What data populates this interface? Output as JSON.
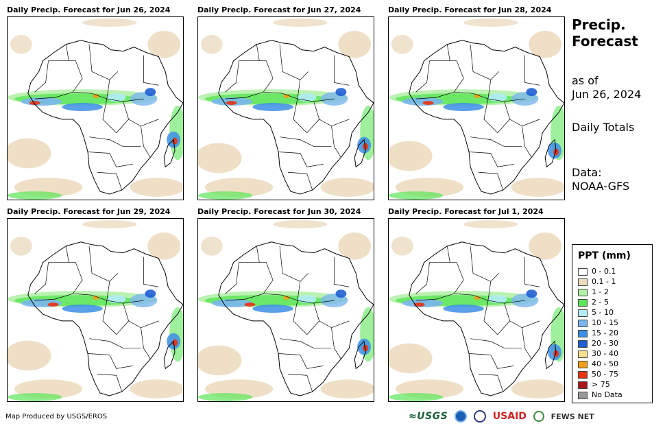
{
  "panels": [
    {
      "title": "Daily Precip. Forecast for Jun 26, 2024"
    },
    {
      "title": "Daily Precip. Forecast for Jun 27, 2024"
    },
    {
      "title": "Daily Precip. Forecast for Jun 28, 2024"
    },
    {
      "title": "Daily Precip. Forecast for Jun 29, 2024"
    },
    {
      "title": "Daily Precip. Forecast for Jun 30, 2024"
    },
    {
      "title": "Daily Precip. Forecast for Jul 1, 2024"
    }
  ],
  "side": {
    "title_line1": "Precip.",
    "title_line2": "Forecast",
    "asof_line1": "as of",
    "asof_line2": "Jun 26, 2024",
    "totals": "Daily Totals",
    "data_line1": "Data:",
    "data_line2": "NOAA-GFS"
  },
  "legend": {
    "title": "PPT (mm)",
    "items": [
      {
        "label": "0 - 0.1",
        "color": "#ffffff"
      },
      {
        "label": "0.1 - 1",
        "color": "#ecdcc0"
      },
      {
        "label": "1 - 2",
        "color": "#b4f0a8"
      },
      {
        "label": "2 - 5",
        "color": "#5ee65a"
      },
      {
        "label": "5 - 10",
        "color": "#b4ecf8"
      },
      {
        "label": "10 - 15",
        "color": "#7ab6ee"
      },
      {
        "label": "15 - 20",
        "color": "#3c8ee6"
      },
      {
        "label": "20 - 30",
        "color": "#1e5ed2"
      },
      {
        "label": "30 - 40",
        "color": "#f8e08c"
      },
      {
        "label": "40 - 50",
        "color": "#f0a018"
      },
      {
        "label": "50 - 75",
        "color": "#e83212"
      },
      {
        "label": "> 75",
        "color": "#a8161a"
      },
      {
        "label": "No Data",
        "color": "#999999"
      }
    ]
  },
  "credit": "Map Produced by USGS/EROS",
  "logos": {
    "usgs": "≈USGS",
    "usaid": "USAID",
    "fews": "FEWS NET"
  }
}
